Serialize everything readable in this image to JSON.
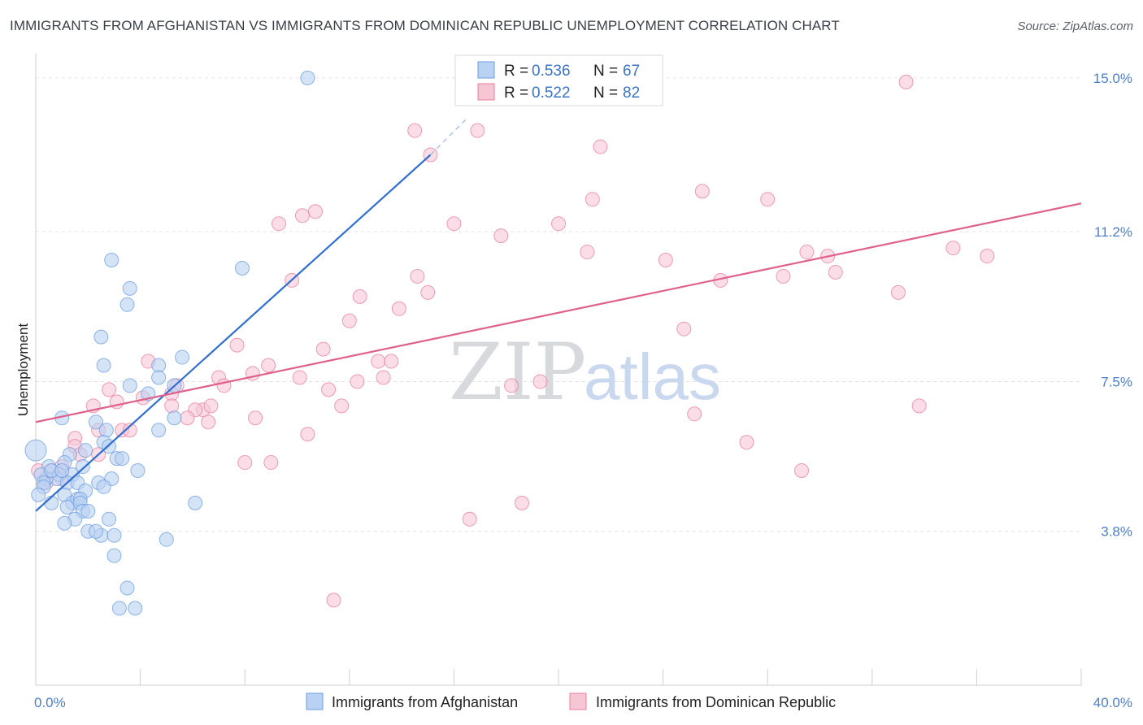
{
  "title": "IMMIGRANTS FROM AFGHANISTAN VS IMMIGRANTS FROM DOMINICAN REPUBLIC UNEMPLOYMENT CORRELATION CHART",
  "source": "Source: ZipAtlas.com",
  "watermark": {
    "zip": "ZIP",
    "atlas": "atlas"
  },
  "chart_data": {
    "type": "scatter",
    "ylabel": "Unemployment",
    "xlabel": "",
    "xlim": [
      0,
      40
    ],
    "ylim": [
      0,
      15.6
    ],
    "x_tick_labels": [
      "0.0%",
      "40.0%"
    ],
    "x_minor_ticks": [
      4,
      8,
      12,
      16,
      20,
      24,
      28,
      32,
      36,
      40
    ],
    "y_ticks": [
      {
        "value": 3.8,
        "label": "3.8%"
      },
      {
        "value": 7.5,
        "label": "7.5%"
      },
      {
        "value": 11.2,
        "label": "11.2%"
      },
      {
        "value": 15.0,
        "label": "15.0%"
      }
    ],
    "legend": {
      "items": [
        {
          "r_label": "R =",
          "r": "0.536",
          "n_label": "N =",
          "n": "67"
        },
        {
          "r_label": "R =",
          "r": "0.522",
          "n_label": "N =",
          "n": "82"
        }
      ]
    },
    "series": [
      {
        "name": "Immigrants from Afghanistan",
        "color": "#6b9de0",
        "fill": "#b9d1f2",
        "trend": {
          "x": [
            0,
            15.1
          ],
          "y": [
            4.3,
            13.1
          ],
          "dashed_to": {
            "x": 16.5,
            "y": 14.0
          }
        },
        "points": [
          [
            10.4,
            15.0
          ],
          [
            2.9,
            10.5
          ],
          [
            7.9,
            10.3
          ],
          [
            3.6,
            9.8
          ],
          [
            3.5,
            9.4
          ],
          [
            2.5,
            8.6
          ],
          [
            5.6,
            8.1
          ],
          [
            2.6,
            7.9
          ],
          [
            4.7,
            7.9
          ],
          [
            3.6,
            7.4
          ],
          [
            4.7,
            7.6
          ],
          [
            5.3,
            7.4
          ],
          [
            4.3,
            7.2
          ],
          [
            1.0,
            6.6
          ],
          [
            2.3,
            6.5
          ],
          [
            5.3,
            6.6
          ],
          [
            2.7,
            6.3
          ],
          [
            4.7,
            6.3
          ],
          [
            2.6,
            6.0
          ],
          [
            0.0,
            5.8
          ],
          [
            1.3,
            5.7
          ],
          [
            1.9,
            5.8
          ],
          [
            2.8,
            5.9
          ],
          [
            3.1,
            5.6
          ],
          [
            3.3,
            5.6
          ],
          [
            1.1,
            5.5
          ],
          [
            0.5,
            5.4
          ],
          [
            0.9,
            5.2
          ],
          [
            0.8,
            5.1
          ],
          [
            0.4,
            5.1
          ],
          [
            3.9,
            5.3
          ],
          [
            0.2,
            5.2
          ],
          [
            1.4,
            5.2
          ],
          [
            0.3,
            5.0
          ],
          [
            1.2,
            5.0
          ],
          [
            1.6,
            5.0
          ],
          [
            0.3,
            4.9
          ],
          [
            1.9,
            4.8
          ],
          [
            2.9,
            5.1
          ],
          [
            2.4,
            5.0
          ],
          [
            2.6,
            4.9
          ],
          [
            0.1,
            4.7
          ],
          [
            1.1,
            4.7
          ],
          [
            1.4,
            4.5
          ],
          [
            1.6,
            4.6
          ],
          [
            1.7,
            4.6
          ],
          [
            0.6,
            4.5
          ],
          [
            1.7,
            4.5
          ],
          [
            1.2,
            4.4
          ],
          [
            1.8,
            4.3
          ],
          [
            6.1,
            4.5
          ],
          [
            2.0,
            4.3
          ],
          [
            1.5,
            4.1
          ],
          [
            2.8,
            4.1
          ],
          [
            1.1,
            4.0
          ],
          [
            2.0,
            3.8
          ],
          [
            2.5,
            3.7
          ],
          [
            2.3,
            3.8
          ],
          [
            3.0,
            3.7
          ],
          [
            5.0,
            3.6
          ],
          [
            3.0,
            3.2
          ],
          [
            3.5,
            2.4
          ],
          [
            3.2,
            1.9
          ],
          [
            3.8,
            1.9
          ],
          [
            1.8,
            5.4
          ],
          [
            0.6,
            5.3
          ],
          [
            1.0,
            5.3
          ]
        ]
      },
      {
        "name": "Immigrants from Dominican Republic",
        "color": "#e87ea0",
        "fill": "#f7c6d5",
        "trend": {
          "x": [
            0,
            40
          ],
          "y": [
            6.5,
            11.9
          ]
        },
        "points": [
          [
            33.3,
            14.9
          ],
          [
            14.5,
            13.7
          ],
          [
            16.9,
            13.7
          ],
          [
            21.6,
            13.3
          ],
          [
            15.1,
            13.1
          ],
          [
            25.5,
            12.2
          ],
          [
            21.3,
            12.0
          ],
          [
            28.0,
            12.0
          ],
          [
            10.7,
            11.7
          ],
          [
            10.2,
            11.6
          ],
          [
            9.3,
            11.4
          ],
          [
            16.0,
            11.4
          ],
          [
            20.0,
            11.4
          ],
          [
            17.8,
            11.1
          ],
          [
            21.1,
            10.7
          ],
          [
            24.1,
            10.5
          ],
          [
            29.5,
            10.7
          ],
          [
            30.3,
            10.6
          ],
          [
            35.1,
            10.8
          ],
          [
            36.4,
            10.6
          ],
          [
            9.8,
            10.0
          ],
          [
            14.6,
            10.1
          ],
          [
            30.6,
            10.2
          ],
          [
            28.6,
            10.1
          ],
          [
            26.2,
            10.0
          ],
          [
            12.4,
            9.6
          ],
          [
            15.0,
            9.7
          ],
          [
            33.0,
            9.7
          ],
          [
            13.9,
            9.3
          ],
          [
            12.0,
            9.0
          ],
          [
            24.8,
            8.8
          ],
          [
            7.7,
            8.4
          ],
          [
            11.0,
            8.3
          ],
          [
            4.3,
            8.0
          ],
          [
            13.1,
            8.0
          ],
          [
            13.6,
            8.0
          ],
          [
            8.9,
            7.9
          ],
          [
            8.3,
            7.7
          ],
          [
            7.0,
            7.6
          ],
          [
            10.1,
            7.6
          ],
          [
            13.3,
            7.6
          ],
          [
            12.3,
            7.5
          ],
          [
            19.3,
            7.5
          ],
          [
            18.2,
            7.4
          ],
          [
            7.2,
            7.4
          ],
          [
            5.4,
            7.4
          ],
          [
            2.8,
            7.3
          ],
          [
            11.2,
            7.3
          ],
          [
            5.2,
            7.2
          ],
          [
            3.1,
            7.0
          ],
          [
            4.1,
            7.1
          ],
          [
            5.2,
            6.9
          ],
          [
            2.2,
            6.9
          ],
          [
            11.7,
            6.9
          ],
          [
            6.4,
            6.8
          ],
          [
            6.7,
            6.9
          ],
          [
            6.1,
            6.8
          ],
          [
            33.8,
            6.9
          ],
          [
            25.2,
            6.7
          ],
          [
            8.4,
            6.6
          ],
          [
            5.8,
            6.6
          ],
          [
            6.6,
            6.5
          ],
          [
            3.3,
            6.3
          ],
          [
            3.6,
            6.3
          ],
          [
            10.4,
            6.2
          ],
          [
            2.4,
            6.3
          ],
          [
            1.5,
            6.1
          ],
          [
            27.2,
            6.0
          ],
          [
            1.5,
            5.9
          ],
          [
            2.4,
            5.7
          ],
          [
            1.7,
            5.7
          ],
          [
            8.0,
            5.5
          ],
          [
            9.0,
            5.5
          ],
          [
            0.1,
            5.3
          ],
          [
            1.0,
            5.4
          ],
          [
            0.6,
            5.3
          ],
          [
            29.3,
            5.3
          ],
          [
            1.0,
            5.1
          ],
          [
            18.6,
            4.5
          ],
          [
            16.6,
            4.1
          ],
          [
            11.4,
            2.1
          ],
          [
            0.4,
            5.0
          ]
        ]
      }
    ]
  }
}
